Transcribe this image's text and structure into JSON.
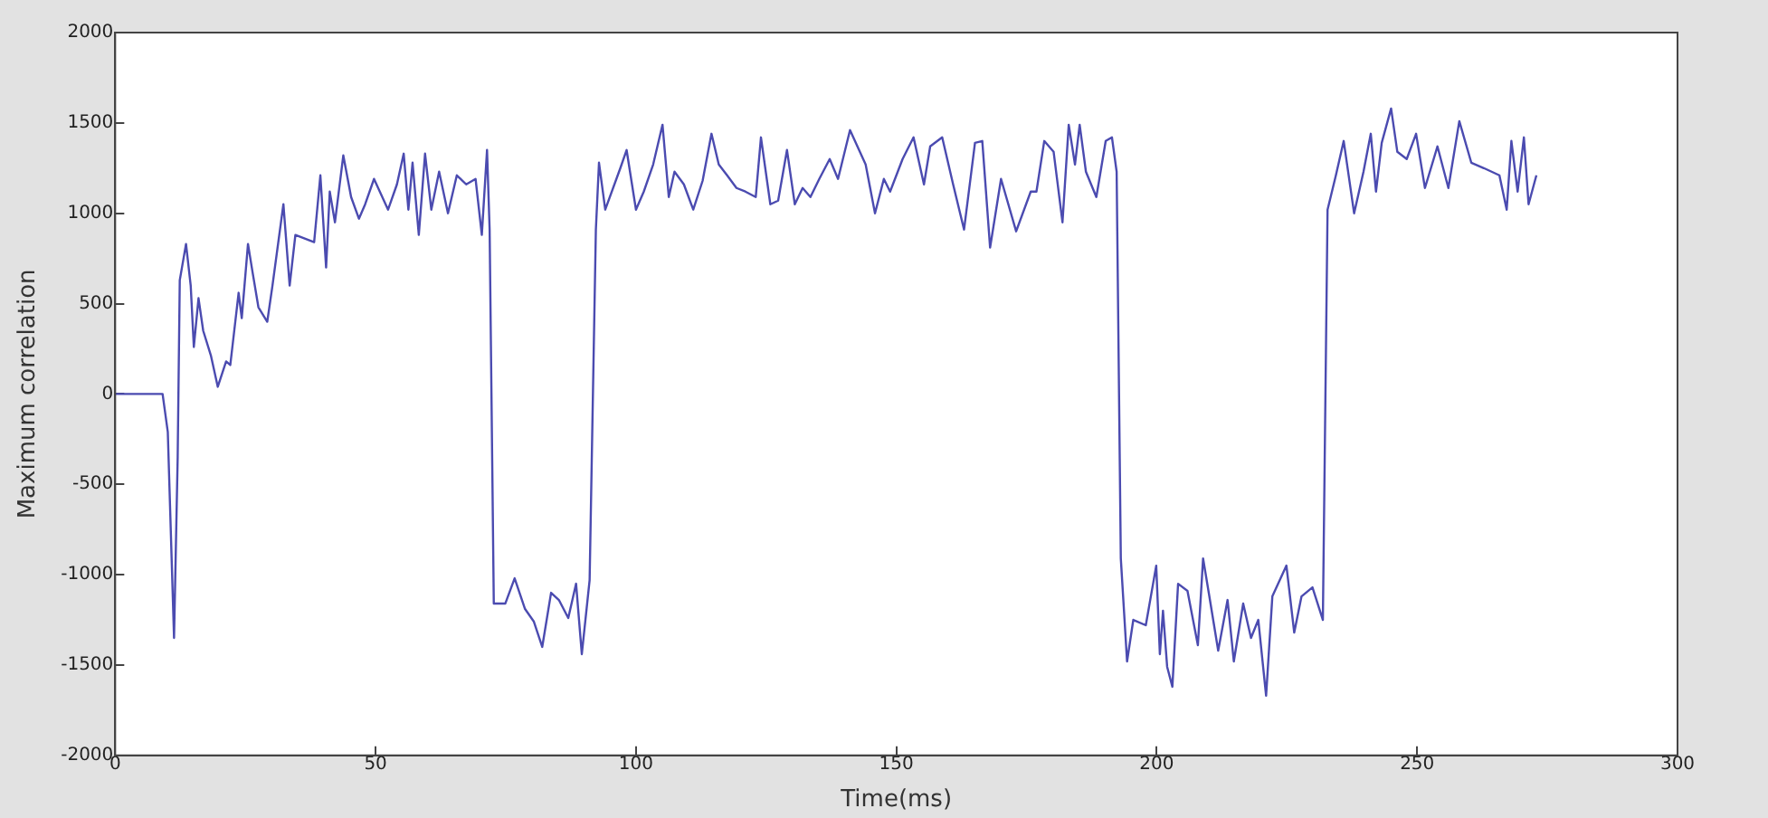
{
  "chart_data": {
    "type": "line",
    "xlabel": "Time(ms)",
    "ylabel": "Maximum correlation",
    "xlim": [
      0,
      300
    ],
    "xticks": [
      0,
      50,
      100,
      150,
      200,
      250,
      300
    ],
    "ylim": [
      -2000,
      2000
    ],
    "yticks": [
      -2000,
      -1500,
      -1000,
      -500,
      0,
      500,
      1000,
      1500,
      2000
    ],
    "grid": false,
    "legend": false,
    "marker": "none",
    "line_style": "solid",
    "series": [
      {
        "color": "#4b4bb0",
        "x": [
          0,
          9.1,
          10.1,
          11.3,
          12.0,
          12.4,
          13.6,
          14.5,
          15.1,
          16.0,
          16.9,
          18.4,
          19.7,
          21.3,
          22.1,
          23.7,
          24.3,
          25.5,
          26.4,
          27.5,
          29.2,
          30.2,
          32.3,
          33.5,
          34.6,
          38.2,
          39.4,
          40.5,
          41.2,
          42.2,
          43.8,
          45.3,
          46.8,
          48.0,
          49.7,
          52.4,
          54.1,
          55.4,
          56.3,
          57.1,
          58.3,
          59.5,
          60.7,
          62.2,
          63.9,
          65.6,
          67.4,
          69.2,
          70.4,
          71.4,
          71.9,
          72.7,
          74.9,
          76.7,
          78.7,
          80.4,
          82.0,
          83.7,
          85.2,
          87.0,
          88.5,
          89.6,
          91.1,
          92.3,
          92.9,
          94.1,
          97.0,
          98.2,
          100,
          101.5,
          103.3,
          105.1,
          106.3,
          107.4,
          109.2,
          111,
          112.8,
          114.5,
          115.9,
          117.5,
          119.3,
          121,
          123,
          124,
          125.8,
          127.3,
          129,
          130.5,
          132,
          133.5,
          135.2,
          137.2,
          138.8,
          141.1,
          144.1,
          145.9,
          147.6,
          148.8,
          151.2,
          153.3,
          155.3,
          156.5,
          158.8,
          160.9,
          163,
          165.1,
          166.5,
          168,
          170.1,
          173,
          175.8,
          176.9,
          178.4,
          180.2,
          181.9,
          183.1,
          184.3,
          185.2,
          186.4,
          188.4,
          190.2,
          191.4,
          192.3,
          193.1,
          194.3,
          195.5,
          197.9,
          199.9,
          200.6,
          201.2,
          202,
          203,
          204.1,
          205.9,
          207.9,
          208.9,
          210.1,
          211.8,
          213.6,
          214.8,
          216.6,
          218.1,
          219.5,
          221,
          222.2,
          224.9,
          226.4,
          227.8,
          229.9,
          231.9,
          232.8,
          234.4,
          235.9,
          237.9,
          239.7,
          241.1,
          242.1,
          243.2,
          245,
          246.2,
          248,
          249.8,
          251.5,
          253.9,
          256,
          258.1,
          260.4,
          262.8,
          265.8,
          267.2,
          268.1,
          269.3,
          270.5,
          271.4,
          272.9
        ],
        "values": [
          0,
          0,
          -210,
          -1350,
          -350,
          630,
          830,
          600,
          260,
          530,
          350,
          210,
          40,
          180,
          160,
          560,
          420,
          830,
          670,
          480,
          400,
          600,
          1050,
          600,
          880,
          840,
          1210,
          700,
          1120,
          950,
          1320,
          1090,
          970,
          1050,
          1190,
          1020,
          1160,
          1330,
          1020,
          1280,
          880,
          1330,
          1020,
          1230,
          1000,
          1210,
          1160,
          1190,
          880,
          1350,
          910,
          -1160,
          -1160,
          -1020,
          -1190,
          -1260,
          -1400,
          -1100,
          -1140,
          -1240,
          -1050,
          -1440,
          -1030,
          910,
          1280,
          1020,
          1250,
          1350,
          1020,
          1120,
          1270,
          1490,
          1090,
          1230,
          1160,
          1020,
          1180,
          1440,
          1270,
          1210,
          1140,
          1120,
          1090,
          1420,
          1050,
          1070,
          1350,
          1050,
          1140,
          1090,
          1190,
          1300,
          1190,
          1460,
          1270,
          1000,
          1190,
          1120,
          1300,
          1420,
          1160,
          1370,
          1420,
          1160,
          910,
          1390,
          1400,
          810,
          1190,
          900,
          1120,
          1120,
          1400,
          1340,
          950,
          1490,
          1270,
          1490,
          1230,
          1090,
          1400,
          1420,
          1230,
          -910,
          -1480,
          -1250,
          -1280,
          -950,
          -1440,
          -1200,
          -1510,
          -1620,
          -1050,
          -1090,
          -1390,
          -910,
          -1120,
          -1420,
          -1140,
          -1480,
          -1160,
          -1350,
          -1250,
          -1670,
          -1120,
          -950,
          -1320,
          -1120,
          -1070,
          -1250,
          1020,
          1210,
          1400,
          1000,
          1230,
          1440,
          1120,
          1390,
          1580,
          1340,
          1300,
          1440,
          1140,
          1370,
          1140,
          1510,
          1280,
          1250,
          1210,
          1020,
          1400,
          1120,
          1420,
          1050,
          1210
        ]
      }
    ]
  }
}
